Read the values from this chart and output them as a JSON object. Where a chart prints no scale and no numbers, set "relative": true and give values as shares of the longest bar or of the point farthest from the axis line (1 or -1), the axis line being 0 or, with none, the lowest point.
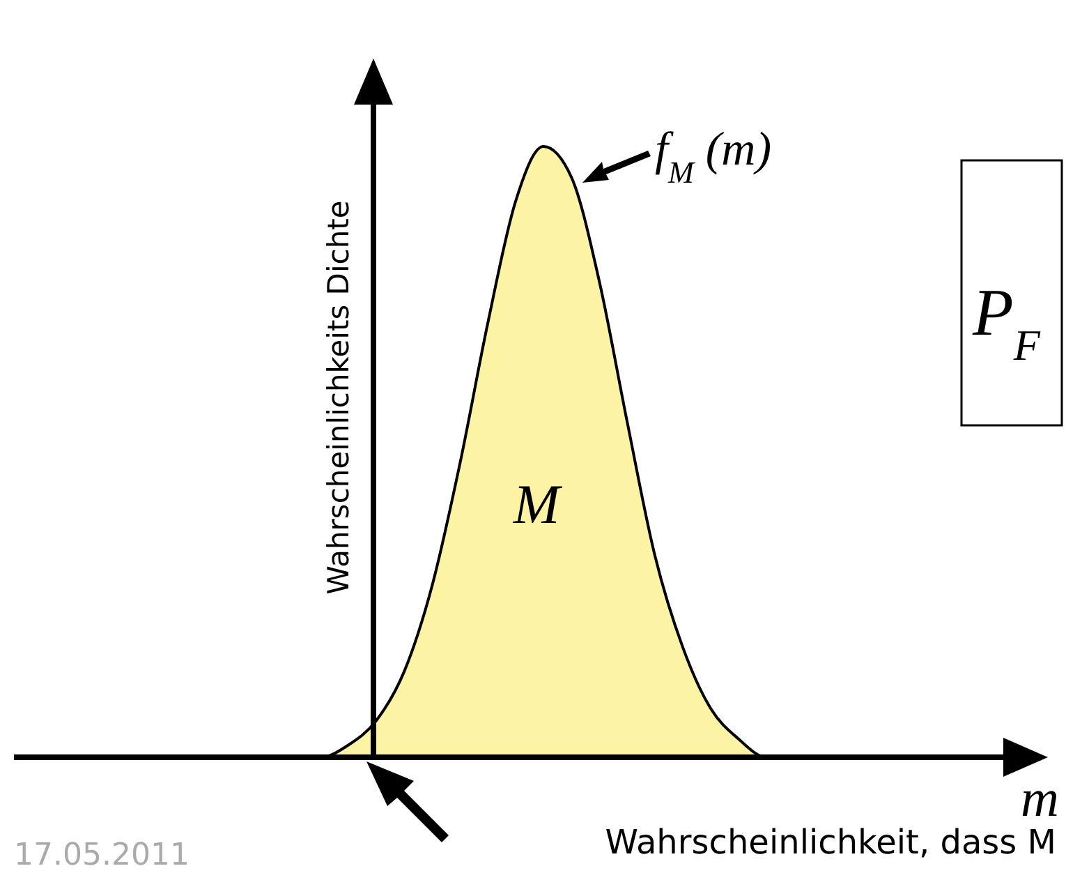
{
  "chart_data": {
    "type": "area",
    "relative": true,
    "xlabel": "m",
    "ylabel": "Wahrscheinlichkeits Dichte",
    "categories": [
      null,
      null,
      null,
      null,
      null,
      null,
      null,
      null,
      null,
      null,
      null,
      null,
      null,
      null,
      null,
      null,
      null,
      null,
      null,
      null,
      null,
      null,
      null,
      null,
      null,
      null,
      null,
      null,
      null,
      null,
      null,
      null,
      null,
      null,
      null,
      null,
      null
    ],
    "series": [
      {
        "color": "#fcf3a5",
        "values": [
          0,
          0,
          0,
          0,
          0,
          0,
          0,
          0,
          0,
          0,
          0,
          0,
          0.02,
          0.06,
          0.14,
          0.28,
          0.48,
          0.71,
          0.91,
          1,
          0.95,
          0.78,
          0.55,
          0.33,
          0.18,
          0.08,
          0.03,
          0,
          0,
          0,
          0,
          0,
          0,
          0,
          0,
          0,
          0
        ]
      }
    ],
    "annotations": [
      "f$_{M}$ (m)",
      "M",
      "P$_{F}$",
      "Wahrscheinlichkeit, dass M",
      "17.05.2011"
    ]
  }
}
